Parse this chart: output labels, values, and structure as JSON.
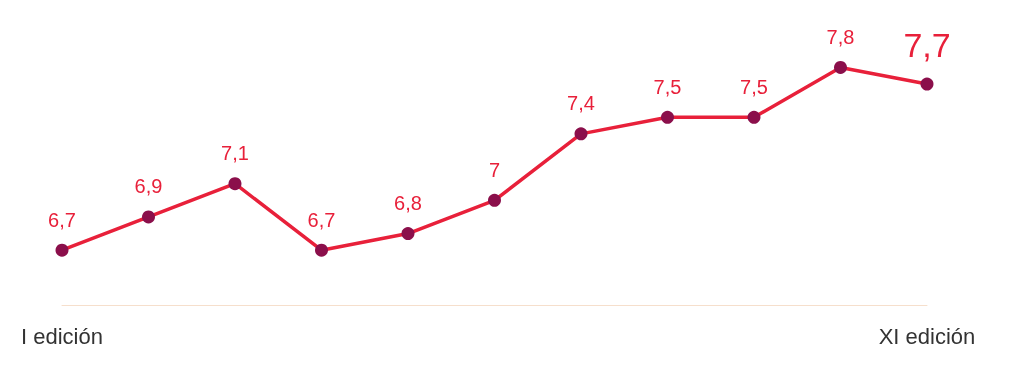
{
  "chart_data": {
    "type": "line",
    "categories": [
      "I edición",
      null,
      null,
      null,
      null,
      null,
      null,
      null,
      null,
      null,
      "XI edición"
    ],
    "series": [
      {
        "color": "#e8203a",
        "colors": [
          "#8b0f4b",
          "#8b0f4b",
          "#8b0f4b",
          "#8b0f4b",
          "#8b0f4b",
          "#8b0f4b",
          "#8b0f4b",
          "#8b0f4b",
          "#8b0f4b",
          "#8b0f4b",
          "#8b0f4b"
        ],
        "values": [
          6.7,
          6.9,
          7.1,
          6.7,
          6.8,
          7.0,
          7.4,
          7.5,
          7.5,
          7.8,
          7.7
        ],
        "value_labels": [
          "6,7",
          "6,9",
          "7,1",
          "6,7",
          "6,8",
          "7",
          "7,4",
          "7,5",
          "7,5",
          "7,8",
          "7,7"
        ]
      }
    ],
    "marker": "circle",
    "line_style": "solid"
  }
}
